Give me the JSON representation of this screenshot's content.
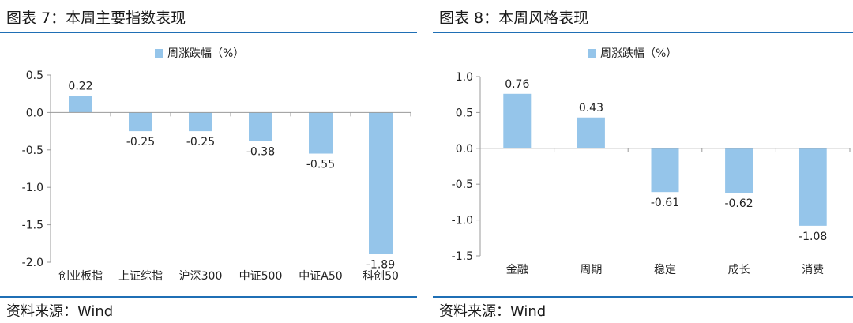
{
  "colors": {
    "bar": "#95c5ea",
    "rule": "#1f6fb5",
    "axis": "#9a9a9a",
    "text": "#222222"
  },
  "panels": [
    {
      "title": "图表 7：本周主要指数表现",
      "source": "资料来源：Wind",
      "chart_data": {
        "type": "bar",
        "categories": [
          "创业板指",
          "上证综指",
          "沪深300",
          "中证500",
          "中证A50",
          "科创50"
        ],
        "series": [
          {
            "name": "周涨跌幅（%）",
            "values": [
              0.22,
              -0.25,
              -0.25,
              -0.38,
              -0.55,
              -1.89
            ]
          }
        ],
        "data_labels": [
          "0.22",
          "-0.25",
          "-0.25",
          "-0.38",
          "-0.55",
          "-1.89"
        ],
        "ylim": [
          -2.0,
          0.5
        ],
        "yticks": [
          0.5,
          0.0,
          -0.5,
          -1.0,
          -1.5,
          -2.0
        ],
        "ytick_labels": [
          "0.5",
          "0.0",
          "-0.5",
          "-1.0",
          "-1.5",
          "-2.0"
        ],
        "legend": "top-center",
        "grid": false
      }
    },
    {
      "title": "图表 8：本周风格表现",
      "source": "资料来源：Wind",
      "chart_data": {
        "type": "bar",
        "categories": [
          "金融",
          "周期",
          "稳定",
          "成长",
          "消费"
        ],
        "series": [
          {
            "name": "周涨跌幅（%）",
            "values": [
              0.76,
              0.43,
              -0.61,
              -0.62,
              -1.08
            ]
          }
        ],
        "data_labels": [
          "0.76",
          "0.43",
          "-0.61",
          "-0.62",
          "-1.08"
        ],
        "ylim": [
          -1.5,
          1.0
        ],
        "yticks": [
          1.0,
          0.5,
          0.0,
          -0.5,
          -1.0,
          -1.5
        ],
        "ytick_labels": [
          "1.0",
          "0.5",
          "0.0",
          "-0.5",
          "-1.0",
          "-1.5"
        ],
        "legend": "top-center",
        "grid": false
      }
    }
  ]
}
